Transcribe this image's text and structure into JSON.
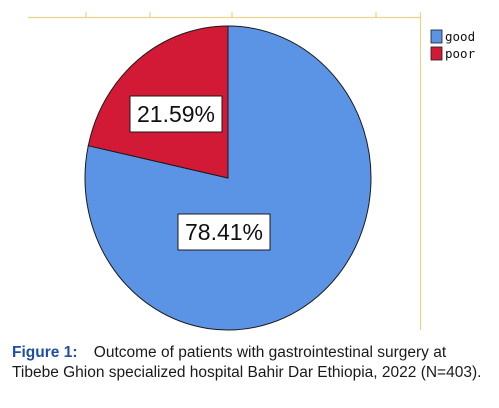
{
  "chart_data": {
    "type": "pie",
    "categories": [
      "good",
      "poor"
    ],
    "values": [
      78.41,
      21.59
    ],
    "slice_labels": [
      "78.41%",
      "21.59%"
    ],
    "colors": {
      "good": "#5b93e5",
      "poor": "#d21a36",
      "frame": "#e8d48a"
    },
    "legend": {
      "placement": "top-right",
      "entries": [
        "good",
        "poor"
      ]
    },
    "start": "12-o-clock",
    "direction": "clockwise"
  },
  "caption": {
    "label": "Figure",
    "number": "1",
    "colon": ":",
    "text": "Outcome of patients with gastrointestinal surgery at Tibebe Ghion specialized hospital Bahir Dar Ethiopia, 2022 (N=403)."
  }
}
